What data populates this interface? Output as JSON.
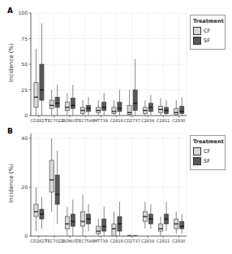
{
  "chart_data": [
    {
      "type": "box",
      "title": "A",
      "y_label": "Incidence (%)",
      "legend_title": "Treatment",
      "legend": "right",
      "grid": true,
      "categories": [
        "CD2827",
        "TEC7022",
        "BONUS",
        "TEC7548",
        "MT739",
        "C2818",
        "CD2737",
        "C2834",
        "C2811",
        "C2830"
      ],
      "ylim": [
        0,
        100
      ],
      "yticks": [
        0,
        25,
        50,
        75,
        100
      ],
      "series": [
        {
          "name": "CF",
          "color": "#d9d9d9",
          "min": [
            0,
            0,
            0,
            0,
            0,
            0,
            0,
            0,
            0,
            0
          ],
          "q1": [
            8,
            7,
            5,
            2,
            3,
            2,
            1,
            2,
            3,
            1
          ],
          "median": [
            18,
            10,
            8,
            5,
            5,
            4,
            3,
            5,
            6,
            3
          ],
          "q3": [
            32,
            15,
            13,
            8,
            8,
            8,
            10,
            8,
            9,
            7
          ],
          "max": [
            65,
            25,
            22,
            15,
            15,
            15,
            25,
            15,
            17,
            15
          ]
        },
        {
          "name": "SF",
          "color": "#595959",
          "min": [
            0,
            0,
            0,
            0,
            0,
            0,
            0,
            0,
            0,
            0
          ],
          "q1": [
            15,
            8,
            7,
            4,
            5,
            4,
            5,
            4,
            2,
            2
          ],
          "median": [
            25,
            12,
            10,
            7,
            8,
            7,
            12,
            8,
            5,
            4
          ],
          "q3": [
            50,
            18,
            17,
            10,
            13,
            13,
            25,
            12,
            8,
            9
          ],
          "max": [
            90,
            30,
            30,
            18,
            22,
            25,
            55,
            20,
            15,
            18
          ]
        }
      ]
    },
    {
      "type": "box",
      "title": "B",
      "y_label": "Incidence (%)",
      "legend_title": "Treatment",
      "legend": "right",
      "grid": true,
      "categories": [
        "CD2827",
        "TEC7022",
        "BONUS",
        "TEC7548",
        "MT739",
        "C2818",
        "CD2737",
        "C2834",
        "C2811",
        "C2830"
      ],
      "ylim": [
        0,
        42
      ],
      "yticks": [
        0,
        20,
        40
      ],
      "series": [
        {
          "name": "CF",
          "color": "#d9d9d9",
          "min": [
            2,
            10,
            0,
            0,
            0,
            0,
            0,
            3,
            0,
            1
          ],
          "q1": [
            8,
            18,
            3,
            4,
            1,
            0,
            0,
            6,
            2,
            3
          ],
          "median": [
            10,
            23,
            5,
            6,
            2,
            3,
            0,
            8,
            3,
            5
          ],
          "q3": [
            13,
            31,
            8,
            10,
            4,
            5,
            0.3,
            10,
            5,
            7
          ],
          "max": [
            20,
            40,
            12,
            17,
            7,
            10,
            0.5,
            14,
            8,
            10
          ]
        },
        {
          "name": "SF",
          "color": "#595959",
          "min": [
            3,
            5,
            0,
            2,
            0,
            0,
            0,
            3,
            2,
            1
          ],
          "q1": [
            7,
            13,
            4,
            5,
            2,
            2,
            0,
            5,
            5,
            3
          ],
          "median": [
            9,
            17,
            6,
            7,
            4,
            5,
            0,
            7,
            7,
            4
          ],
          "q3": [
            11,
            25,
            9,
            9,
            7,
            8,
            0.2,
            9,
            9,
            6
          ],
          "max": [
            16,
            35,
            15,
            13,
            12,
            14,
            0.5,
            13,
            14,
            9
          ]
        }
      ]
    }
  ]
}
